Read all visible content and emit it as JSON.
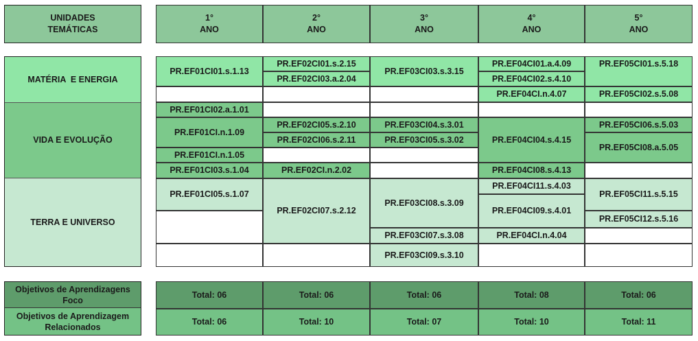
{
  "headers": {
    "thematic": "UNIDADES\nTEMÁTICAS",
    "years": [
      {
        "num": "1°",
        "word": "ANO"
      },
      {
        "num": "2°",
        "word": "ANO"
      },
      {
        "num": "3°",
        "word": "ANO"
      },
      {
        "num": "4°",
        "word": "ANO"
      },
      {
        "num": "5°",
        "word": "ANO"
      }
    ]
  },
  "units": {
    "materia": "MATÉRIA  E ENERGIA",
    "vida": "VIDA E EVOLUÇÃO",
    "terra": "TERRA E UNIVERSO"
  },
  "codes": {
    "y1": {
      "c1": "PR.EF01CI01.s.1.13",
      "c2": "PR.EF01CI02.a.1.01",
      "c3": "PR.EF01CI.n.1.09",
      "c4": "PR.EF01CI.n.1.05",
      "c5": "PR.EF01CI03.s.1.04",
      "c6": "PR.EF01CI05.s.1.07"
    },
    "y2": {
      "c1": "PR.EF02CI01.s.2.15",
      "c2": "PR.EF02CI03.a.2.04",
      "c3": "PR.EF02CI05.s.2.10",
      "c4": "PR.EF02CI06.s.2.11",
      "c5": "PR.EF02CI.n.2.02",
      "c6": "PR.EF02CI07.s.2.12"
    },
    "y3": {
      "c1": "PR.EF03CI03.s.3.15",
      "c2": "PR.EF03CI04.s.3.01",
      "c3": "PR.EF03CI05.s.3.02",
      "c4": "PR.EF03CI08.s.3.09",
      "c5": "PR.EF03CI07.s.3.08",
      "c6": "PR.EF03CI09.s.3.10"
    },
    "y4": {
      "c1": "PR.EF04CI01.a.4.09",
      "c2": "PR.EF04CI02.s.4.10",
      "c3": "PR.EF04CI.n.4.07",
      "c4": "PR.EF04CI04.s.4.15",
      "c5": "PR.EF04CI08.s.4.13",
      "c6": "PR.EF04CI11.s.4.03",
      "c7": "PR.EF04CI09.s.4.01",
      "c8": "PR.EF04CI.n.4.04"
    },
    "y5": {
      "c1": "PR.EF05CI01.s.5.18",
      "c2": "PR.EF05CI02.s.5.08",
      "c3": "PR.EF05CI06.s.5.03",
      "c4": "PR.EF05CI08.a.5.05",
      "c5": "PR.EF05CI11.s.5.15",
      "c6": "PR.EF05CI12.s.5.16"
    }
  },
  "footer": {
    "focus_label": "Objetivos de Aprendizagens\nFoco",
    "related_label": "Objetivos de Aprendizagem\nRelacionados",
    "focus_totals": [
      "Total: 06",
      "Total: 06",
      "Total: 06",
      "Total: 08",
      "Total: 06"
    ],
    "related_totals": [
      "Total: 06",
      "Total: 10",
      "Total: 07",
      "Total: 10",
      "Total: 11"
    ]
  },
  "colors": {
    "header": "#8dc79a",
    "light_green": "#90e6a6",
    "medium_green": "#7cc98b",
    "pale_green": "#c6e8d1",
    "footer_dark": "#5e9c6b",
    "footer_medium": "#74c286"
  }
}
